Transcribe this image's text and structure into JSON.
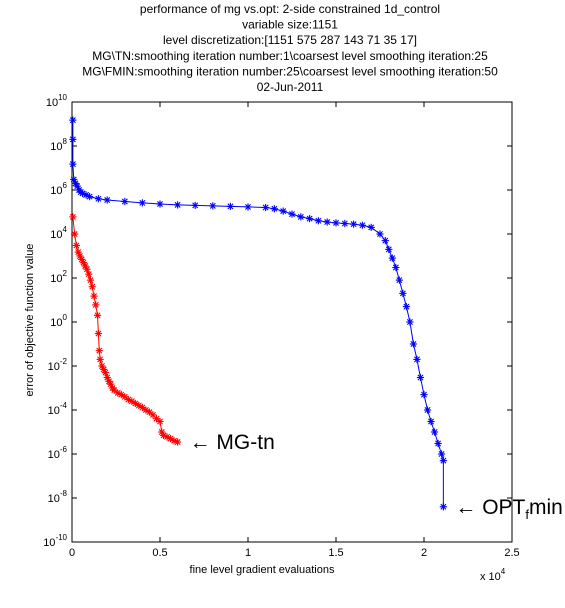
{
  "chart_data": {
    "type": "scatter",
    "title_lines": [
      "performance of mg vs.opt: 2-side constrained 1d_control",
      "variable size:1151",
      "level discretization:[1151 575 287 143 71 35 17]",
      "MG\\TN:smoothing iteration number:1\\coarsest level smoothing iteration:25",
      "MG\\FMIN:smoothing iteration number:25\\coarsest level smoothing iteration:50",
      "02-Jun-2011"
    ],
    "xlabel": "fine level gradient evaluations",
    "ylabel": "error of objective function value",
    "x_multiplier_label": {
      "base": "x 10",
      "exp": "4"
    },
    "xlim": [
      0,
      2.5
    ],
    "x_scale_factor": 10000,
    "ylim": [
      1e-10,
      10000000000.0
    ],
    "y_scale": "log",
    "xticks": [
      "0",
      "0.5",
      "1",
      "1.5",
      "2",
      "2.5"
    ],
    "yticks": [
      {
        "base": "10",
        "exp": "-10"
      },
      {
        "base": "10",
        "exp": "-8"
      },
      {
        "base": "10",
        "exp": "-6"
      },
      {
        "base": "10",
        "exp": "-4"
      },
      {
        "base": "10",
        "exp": "-2"
      },
      {
        "base": "10",
        "exp": "0"
      },
      {
        "base": "10",
        "exp": "2"
      },
      {
        "base": "10",
        "exp": "4"
      },
      {
        "base": "10",
        "exp": "6"
      },
      {
        "base": "10",
        "exp": "8"
      },
      {
        "base": "10",
        "exp": "10"
      }
    ],
    "grid": false,
    "series": [
      {
        "name": "MG-tn",
        "color": "#ff0000",
        "marker": "asterisk",
        "points": [
          [
            0.005,
            60000
          ],
          [
            0.015,
            10000
          ],
          [
            0.025,
            3000
          ],
          [
            0.035,
            1500
          ],
          [
            0.045,
            1000
          ],
          [
            0.055,
            700
          ],
          [
            0.065,
            500
          ],
          [
            0.075,
            350
          ],
          [
            0.085,
            250
          ],
          [
            0.095,
            150
          ],
          [
            0.105,
            80
          ],
          [
            0.115,
            40
          ],
          [
            0.125,
            15
          ],
          [
            0.135,
            6
          ],
          [
            0.145,
            2
          ],
          [
            0.15,
            0.3
          ],
          [
            0.155,
            0.05
          ],
          [
            0.16,
            0.02
          ],
          [
            0.17,
            0.01
          ],
          [
            0.18,
            0.007
          ],
          [
            0.19,
            0.005
          ],
          [
            0.2,
            0.003
          ],
          [
            0.21,
            0.002
          ],
          [
            0.22,
            0.0015
          ],
          [
            0.23,
            0.001
          ],
          [
            0.24,
            0.0008
          ],
          [
            0.26,
            0.0006
          ],
          [
            0.28,
            0.0005
          ],
          [
            0.3,
            0.0004
          ],
          [
            0.32,
            0.0003
          ],
          [
            0.34,
            0.00025
          ],
          [
            0.36,
            0.0002
          ],
          [
            0.38,
            0.00016
          ],
          [
            0.4,
            0.00013
          ],
          [
            0.42,
            0.0001
          ],
          [
            0.44,
            8e-05
          ],
          [
            0.46,
            6e-05
          ],
          [
            0.48,
            4e-05
          ],
          [
            0.5,
            3e-05
          ],
          [
            0.51,
            1e-05
          ],
          [
            0.52,
            7e-06
          ],
          [
            0.54,
            6e-06
          ],
          [
            0.56,
            5e-06
          ],
          [
            0.58,
            4e-06
          ],
          [
            0.6,
            3.5e-06
          ]
        ]
      },
      {
        "name": "OPT fmin",
        "color": "#0000ff",
        "marker": "asterisk",
        "points": [
          [
            0.005,
            1500000000
          ],
          [
            0.005,
            200000000
          ],
          [
            0.005,
            15000000
          ],
          [
            0.01,
            3000000
          ],
          [
            0.02,
            2000000
          ],
          [
            0.03,
            1500000
          ],
          [
            0.04,
            1000000
          ],
          [
            0.05,
            800000
          ],
          [
            0.06,
            700000
          ],
          [
            0.08,
            600000
          ],
          [
            0.1,
            500000
          ],
          [
            0.15,
            400000
          ],
          [
            0.2,
            350000
          ],
          [
            0.3,
            300000
          ],
          [
            0.4,
            260000
          ],
          [
            0.5,
            230000
          ],
          [
            0.6,
            210000
          ],
          [
            0.7,
            200000
          ],
          [
            0.8,
            190000
          ],
          [
            0.9,
            180000
          ],
          [
            1.0,
            170000
          ],
          [
            1.1,
            160000
          ],
          [
            1.15,
            140000
          ],
          [
            1.2,
            110000
          ],
          [
            1.25,
            80000
          ],
          [
            1.3,
            60000
          ],
          [
            1.35,
            50000
          ],
          [
            1.4,
            40000
          ],
          [
            1.45,
            35000
          ],
          [
            1.5,
            32000
          ],
          [
            1.55,
            30000
          ],
          [
            1.6,
            28000
          ],
          [
            1.65,
            25000
          ],
          [
            1.7,
            20000
          ],
          [
            1.75,
            10000
          ],
          [
            1.78,
            5000
          ],
          [
            1.8,
            2000
          ],
          [
            1.82,
            800
          ],
          [
            1.84,
            300
          ],
          [
            1.86,
            80
          ],
          [
            1.88,
            20
          ],
          [
            1.9,
            5
          ],
          [
            1.92,
            1
          ],
          [
            1.94,
            0.1
          ],
          [
            1.96,
            0.02
          ],
          [
            1.98,
            0.003
          ],
          [
            2.0,
            0.0005
          ],
          [
            2.02,
            0.0001
          ],
          [
            2.04,
            3e-05
          ],
          [
            2.06,
            1e-05
          ],
          [
            2.08,
            3e-06
          ],
          [
            2.1,
            1e-06
          ],
          [
            2.11,
            5e-07
          ],
          [
            2.11,
            4e-09
          ]
        ]
      }
    ],
    "annotations": [
      {
        "text": "← MG-tn",
        "series": "MG-tn"
      },
      {
        "text": "← OPT",
        "sub": "f",
        "tail": "min",
        "series": "OPT fmin"
      }
    ]
  }
}
